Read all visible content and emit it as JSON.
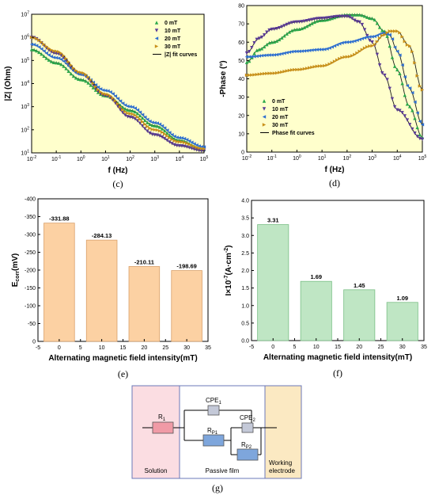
{
  "chart_data": [
    {
      "id": "c",
      "type": "line",
      "panel_label": "(c)",
      "xlabel": "f (Hz)",
      "ylabel": "|Z| (Ohm)",
      "xscale": "log",
      "yscale": "log",
      "xlim": [
        0.01,
        100000
      ],
      "ylim": [
        10,
        10000000
      ],
      "x_ticks": [
        "10-2",
        "10-1",
        "100",
        "101",
        "102",
        "103",
        "104",
        "105"
      ],
      "y_ticks": [
        "101",
        "102",
        "103",
        "104",
        "105",
        "106",
        "107"
      ],
      "background": "#ffffcc",
      "legend_position": "top-right",
      "series": [
        {
          "name": "0 mT",
          "color": "#2aa84a",
          "marker": "triangle-up",
          "points": [
            [
              0.01,
              300000
            ],
            [
              0.1,
              80000
            ],
            [
              1,
              15000
            ],
            [
              10,
              3000
            ],
            [
              100,
              700
            ],
            [
              1000,
              150
            ],
            [
              10000,
              35
            ],
            [
              100000,
              14
            ]
          ]
        },
        {
          "name": "10 mT",
          "color": "#5a3a96",
          "marker": "triangle-down",
          "points": [
            [
              0.01,
              1000000
            ],
            [
              0.1,
              200000
            ],
            [
              1,
              25000
            ],
            [
              10,
              3000
            ],
            [
              100,
              350
            ],
            [
              1000,
              60
            ],
            [
              10000,
              20
            ],
            [
              100000,
              12
            ]
          ]
        },
        {
          "name": "20 mT",
          "color": "#2e6fd0",
          "marker": "triangle-left",
          "points": [
            [
              0.01,
              500000
            ],
            [
              0.1,
              130000
            ],
            [
              1,
              25000
            ],
            [
              10,
              5000
            ],
            [
              100,
              1000
            ],
            [
              1000,
              200
            ],
            [
              10000,
              45
            ],
            [
              100000,
              18
            ]
          ]
        },
        {
          "name": "30 mT",
          "color": "#c8901a",
          "marker": "triangle-right",
          "points": [
            [
              0.01,
              1000000
            ],
            [
              0.1,
              250000
            ],
            [
              1,
              30000
            ],
            [
              10,
              3500
            ],
            [
              100,
              500
            ],
            [
              1000,
              100
            ],
            [
              10000,
              30
            ],
            [
              100000,
              15
            ]
          ]
        }
      ],
      "fit_label": "|Z| fit curves"
    },
    {
      "id": "d",
      "type": "line",
      "panel_label": "(d)",
      "xlabel": "f (Hz)",
      "ylabel": "-Phase (°)",
      "xscale": "log",
      "xlim": [
        0.01,
        100000
      ],
      "ylim": [
        0,
        80
      ],
      "x_ticks": [
        "10-2",
        "10-1",
        "100",
        "101",
        "102",
        "103",
        "104",
        "105"
      ],
      "y_ticks": [
        "0",
        "10",
        "20",
        "30",
        "40",
        "50",
        "60",
        "70",
        "80"
      ],
      "background": "#ffffcc",
      "legend_position": "bottom-left",
      "series": [
        {
          "name": "0 mT",
          "color": "#2aa84a",
          "marker": "triangle-up",
          "points": [
            [
              0.01,
              49
            ],
            [
              0.03,
              56
            ],
            [
              0.1,
              60
            ],
            [
              1,
              67
            ],
            [
              10,
              72
            ],
            [
              100,
              75
            ],
            [
              300,
              75
            ],
            [
              1000,
              73
            ],
            [
              3000,
              66
            ],
            [
              10000,
              45
            ],
            [
              30000,
              25
            ],
            [
              100000,
              8
            ]
          ]
        },
        {
          "name": "10 mT",
          "color": "#5a3a96",
          "marker": "triangle-down",
          "points": [
            [
              0.01,
              54
            ],
            [
              0.03,
              62
            ],
            [
              0.1,
              67
            ],
            [
              1,
              71
            ],
            [
              10,
              73
            ],
            [
              50,
              74
            ],
            [
              100,
              74
            ],
            [
              300,
              71
            ],
            [
              1000,
              60
            ],
            [
              3000,
              42
            ],
            [
              10000,
              23
            ],
            [
              100000,
              7
            ]
          ]
        },
        {
          "name": "20 mT",
          "color": "#2e6fd0",
          "marker": "triangle-left",
          "points": [
            [
              0.01,
              52
            ],
            [
              0.1,
              53
            ],
            [
              1,
              55
            ],
            [
              10,
              56
            ],
            [
              100,
              60
            ],
            [
              1000,
              63
            ],
            [
              3000,
              65
            ],
            [
              5000,
              64
            ],
            [
              10000,
              55
            ],
            [
              30000,
              35
            ],
            [
              100000,
              15
            ]
          ]
        },
        {
          "name": "30 mT",
          "color": "#c8901a",
          "marker": "triangle-right",
          "points": [
            [
              0.01,
              42
            ],
            [
              0.1,
              43
            ],
            [
              1,
              45
            ],
            [
              10,
              47
            ],
            [
              100,
              52
            ],
            [
              1000,
              58
            ],
            [
              3000,
              64
            ],
            [
              5000,
              66
            ],
            [
              10000,
              66
            ],
            [
              30000,
              58
            ],
            [
              100000,
              34
            ]
          ]
        }
      ],
      "fit_label": "Phase fit curves"
    },
    {
      "id": "e",
      "type": "bar",
      "panel_label": "(e)",
      "xlabel": "Alternating magnetic field intensity(mT)",
      "ylabel": "Ecorr(mV)",
      "xlim": [
        -5,
        35
      ],
      "ylim": [
        0,
        -400
      ],
      "x_ticks": [
        "-5",
        "0",
        "5",
        "10",
        "15",
        "20",
        "25",
        "30",
        "35"
      ],
      "y_ticks": [
        "0",
        "-50",
        "-100",
        "-150",
        "-200",
        "-250",
        "-300",
        "-350",
        "-400"
      ],
      "categories": [
        0,
        10,
        20,
        30
      ],
      "values": [
        -331.88,
        -284.13,
        -210.11,
        -198.69
      ],
      "value_labels": [
        "-331.88",
        "-284.13",
        "-210.11",
        "-198.69"
      ],
      "bar_color": "#fcd1a3",
      "bar_edge": "#d9a06a"
    },
    {
      "id": "f",
      "type": "bar",
      "panel_label": "(f)",
      "xlabel": "Alternating magnetic field intensity(mT)",
      "ylabel": "I×10-7(A·cm-2)",
      "xlim": [
        -5,
        35
      ],
      "ylim": [
        0,
        4
      ],
      "x_ticks": [
        "-5",
        "0",
        "5",
        "10",
        "15",
        "20",
        "25",
        "30",
        "35"
      ],
      "y_ticks": [
        "0.0",
        "0.5",
        "1.0",
        "1.5",
        "2.0",
        "2.5",
        "3.0",
        "3.5",
        "4.0"
      ],
      "categories": [
        0,
        10,
        20,
        30
      ],
      "values": [
        3.31,
        1.69,
        1.45,
        1.09
      ],
      "value_labels": [
        "3.31",
        "1.69",
        "1.45",
        "1.09"
      ],
      "bar_color": "#bfe6c4",
      "bar_edge": "#7bbf86"
    }
  ],
  "circuit": {
    "panel_label": "(g)",
    "solution_label": "Solution",
    "film_label": "Passive film",
    "electrode_label_1": "Working",
    "electrode_label_2": "electrode",
    "components": {
      "r1": {
        "main": "R",
        "sub": "1"
      },
      "cpe1": {
        "main": "CPE",
        "sub": "1"
      },
      "rp1": {
        "main": "R",
        "sub": "P1"
      },
      "cpe2": {
        "main": "CPE",
        "sub": "2"
      },
      "rp2": {
        "main": "R",
        "sub": "P2"
      }
    },
    "colors": {
      "solution_bg": "#fbdde2",
      "film_bg": "#ffffff",
      "electrode_bg": "#fbe9c2",
      "border": "#6b78b8",
      "r1_fill": "#f09aa6",
      "cpe_fill": "#c4c9d8",
      "rp_fill": "#7ea6dc"
    }
  }
}
